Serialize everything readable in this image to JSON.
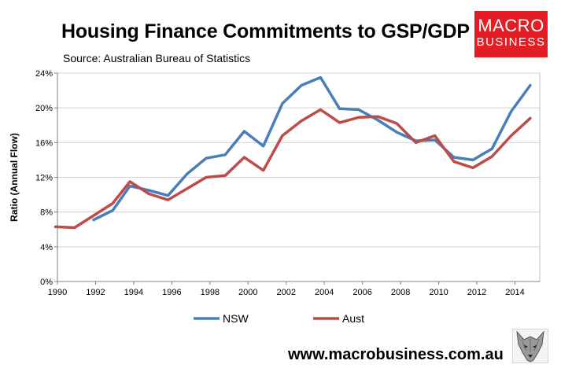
{
  "header": {
    "title": "Housing Finance Commitments to GSP/GDP",
    "subtitle": "Source: Australian Bureau of Statistics"
  },
  "logo": {
    "line1": "MACRO",
    "line2": "BUSINESS",
    "color": "#e21d24"
  },
  "footer": {
    "url": "www.macrobusiness.com.au",
    "icon": "wolf-icon"
  },
  "chart_data": {
    "type": "line",
    "ylabel": "Ratio (Annual Flow)",
    "xlim": [
      1990,
      2015.3
    ],
    "ylim": [
      0,
      24
    ],
    "x_ticks": [
      1990,
      1992,
      1994,
      1996,
      1998,
      2000,
      2002,
      2004,
      2006,
      2008,
      2010,
      2012,
      2014
    ],
    "y_ticks": [
      0,
      4,
      8,
      12,
      16,
      20,
      24
    ],
    "y_tick_suffix": "%",
    "grid": true,
    "legend_position": "bottom",
    "series": [
      {
        "name": "NSW",
        "color": "#4a7ebb",
        "x": [
          1991.9,
          1992.9,
          1993.8,
          1994.8,
          1995.8,
          1996.8,
          1997.8,
          1998.8,
          1999.8,
          2000.8,
          2001.8,
          2002.8,
          2003.8,
          2004.8,
          2005.8,
          2006.8,
          2007.8,
          2008.8,
          2009.8,
          2010.8,
          2011.8,
          2012.8,
          2013.8,
          2014.8
        ],
        "values": [
          7.1,
          8.2,
          11.0,
          10.5,
          9.9,
          12.4,
          14.2,
          14.6,
          17.3,
          15.6,
          20.5,
          22.6,
          23.5,
          19.9,
          19.8,
          18.6,
          17.2,
          16.2,
          16.3,
          14.3,
          14.0,
          15.3,
          19.6,
          22.6
        ]
      },
      {
        "name": "Aust",
        "color": "#be4b48",
        "x": [
          1989.9,
          1990.9,
          1991.9,
          1992.9,
          1993.8,
          1994.8,
          1995.8,
          1996.8,
          1997.8,
          1998.8,
          1999.8,
          2000.8,
          2001.8,
          2002.8,
          2003.8,
          2004.8,
          2005.8,
          2006.8,
          2007.8,
          2008.8,
          2009.8,
          2010.8,
          2011.8,
          2012.8,
          2013.8,
          2014.8
        ],
        "values": [
          6.3,
          6.2,
          7.6,
          9.0,
          11.5,
          10.1,
          9.4,
          10.7,
          12.0,
          12.2,
          14.3,
          12.8,
          16.8,
          18.5,
          19.8,
          18.3,
          18.9,
          19.0,
          18.2,
          16.0,
          16.8,
          13.8,
          13.1,
          14.4,
          16.8,
          18.8
        ]
      }
    ]
  }
}
